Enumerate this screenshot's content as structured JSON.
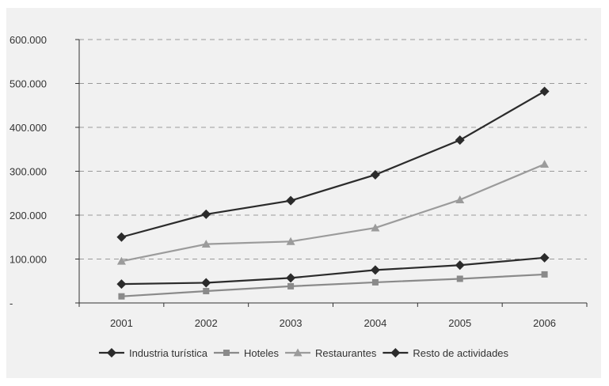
{
  "chart_data": {
    "type": "line",
    "title": "",
    "xlabel": "",
    "ylabel": "",
    "x": [
      "2001",
      "2002",
      "2003",
      "2004",
      "2005",
      "2006"
    ],
    "ylim": [
      0,
      600000
    ],
    "y_ticks": [
      {
        "value": 0,
        "label": "-"
      },
      {
        "value": 100000,
        "label": "100.000"
      },
      {
        "value": 200000,
        "label": "200.000"
      },
      {
        "value": 300000,
        "label": "300.000"
      },
      {
        "value": 400000,
        "label": "400.000"
      },
      {
        "value": 500000,
        "label": "500.000"
      },
      {
        "value": 600000,
        "label": "600.000"
      }
    ],
    "grid": "horizontal-dashed",
    "legend_position": "bottom",
    "series": [
      {
        "name": "Industria turística",
        "marker": "diamond",
        "color": "#2b2b2b",
        "values": [
          150000,
          202000,
          233000,
          292000,
          371000,
          482000
        ]
      },
      {
        "name": "Hoteles",
        "marker": "square",
        "color": "#8a8a8a",
        "values": [
          15000,
          27000,
          38000,
          47000,
          55000,
          65000
        ]
      },
      {
        "name": "Restaurantes",
        "marker": "triangle",
        "color": "#9b9b9b",
        "values": [
          95000,
          134000,
          140000,
          171000,
          235000,
          316000
        ]
      },
      {
        "name": "Resto de actividades",
        "marker": "diamond",
        "color": "#2b2b2b",
        "values": [
          43000,
          46000,
          57000,
          75000,
          86000,
          103000
        ]
      }
    ]
  }
}
